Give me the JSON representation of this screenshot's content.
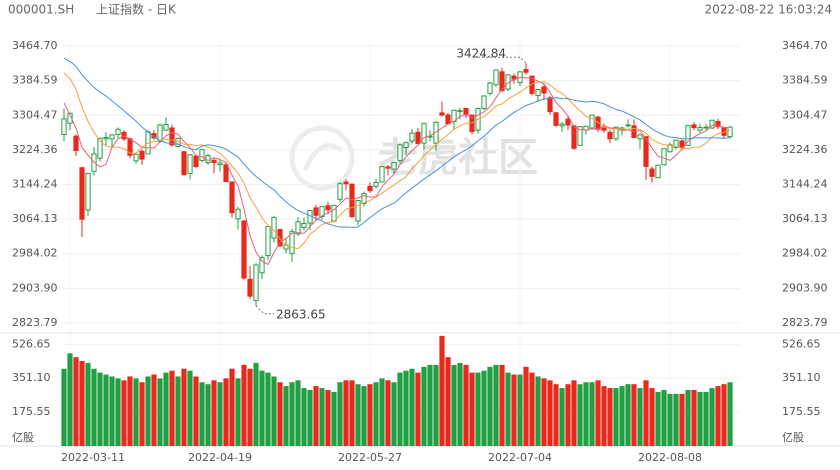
{
  "chart_data": {
    "type": "candlestick",
    "symbol": "000001.SH",
    "title": "上证指数 - 日K",
    "timestamp": "2022-08-22 16:03:24",
    "watermark": "老虎社区",
    "up_color": "#21a043",
    "down_color": "#e8291c",
    "grid": true,
    "categories": [
      null,
      "2022-03-11",
      null,
      null,
      null,
      null,
      null,
      null,
      null,
      null,
      null,
      null,
      null,
      null,
      null,
      null,
      null,
      null,
      null,
      null,
      null,
      null,
      null,
      null,
      null,
      null,
      "2022-04-19",
      null,
      null,
      null,
      null,
      null,
      null,
      null,
      null,
      null,
      null,
      null,
      null,
      null,
      null,
      null,
      null,
      null,
      null,
      null,
      null,
      null,
      null,
      null,
      null,
      "2022-05-27",
      null,
      null,
      null,
      null,
      null,
      null,
      null,
      null,
      null,
      null,
      null,
      null,
      null,
      null,
      null,
      null,
      null,
      null,
      null,
      null,
      null,
      null,
      null,
      null,
      "2022-07-04",
      null,
      null,
      null,
      null,
      null,
      null,
      null,
      null,
      null,
      null,
      null,
      null,
      null,
      null,
      null,
      null,
      null,
      null,
      null,
      null,
      null,
      null,
      null,
      null,
      "2022-08-08",
      null,
      null,
      null,
      null,
      null,
      null,
      null,
      null,
      null,
      null
    ],
    "open": [
      3260,
      3286,
      3256,
      3183,
      3085,
      3175,
      3205,
      3250,
      3250,
      3260,
      3265,
      3250,
      3199,
      3221,
      3215,
      3262,
      3244,
      3270,
      3275,
      3232,
      3220,
      3170,
      3210,
      3200,
      3195,
      3200,
      3190,
      3190,
      3150,
      3065,
      3060,
      2925,
      2876,
      2940,
      2980,
      3020,
      3040,
      2995,
      2985,
      3030,
      3045,
      3055,
      3090,
      3070,
      3095,
      3060,
      3110,
      3150,
      3145,
      3060,
      3100,
      3140,
      3140,
      3150,
      3185,
      3180,
      3200,
      3230,
      3245,
      3265,
      3240,
      3255,
      3240,
      3310,
      3305,
      3290,
      3315,
      3320,
      3305,
      3270,
      3320,
      3355,
      3375,
      3405,
      3365,
      3395,
      3380,
      3410,
      3395,
      3350,
      3370,
      3345,
      3310,
      3280,
      3295,
      3280,
      3235,
      3270,
      3275,
      3300,
      3275,
      3265,
      3250,
      3270,
      3280,
      3280,
      3250,
      3255,
      3180,
      3160,
      3190,
      3220,
      3230,
      3245,
      3235,
      3282,
      3270,
      3275,
      3275,
      3290,
      3275,
      3255
    ],
    "high": [
      3320,
      3310,
      3260,
      3185,
      3171,
      3231,
      3253,
      3265,
      3261,
      3276,
      3270,
      3253,
      3218,
      3226,
      3270,
      3270,
      3285,
      3300,
      3283,
      3253,
      3222,
      3215,
      3213,
      3227,
      3216,
      3205,
      3204,
      3197,
      3152,
      3093,
      3060,
      2955,
      2962,
      2980,
      3048,
      3071,
      3042,
      3021,
      3042,
      3069,
      3068,
      3085,
      3097,
      3094,
      3104,
      3097,
      3150,
      3156,
      3146,
      3109,
      3128,
      3149,
      3158,
      3187,
      3189,
      3196,
      3238,
      3244,
      3273,
      3275,
      3287,
      3270,
      3291,
      3336,
      3310,
      3317,
      3322,
      3321,
      3305,
      3322,
      3351,
      3381,
      3410,
      3414,
      3399,
      3401,
      3406,
      3424.84,
      3396,
      3365,
      3378,
      3350,
      3312,
      3289,
      3302,
      3280,
      3279,
      3280,
      3305,
      3303,
      3285,
      3270,
      3278,
      3278,
      3295,
      3295,
      3262,
      3255,
      3186,
      3190,
      3228,
      3242,
      3248,
      3248,
      3281,
      3288,
      3285,
      3284,
      3293,
      3296,
      3278,
      3280
    ],
    "low": [
      3245,
      3270,
      3210,
      3023,
      3072,
      3165,
      3198,
      3235,
      3230,
      3252,
      3245,
      3205,
      3192,
      3190,
      3214,
      3247,
      3240,
      3268,
      3232,
      3230,
      3165,
      3156,
      3182,
      3196,
      3190,
      3170,
      3174,
      3150,
      3068,
      3040,
      2924,
      2880,
      2863.65,
      2925,
      2970,
      3010,
      3000,
      2985,
      2965,
      3025,
      3038,
      3040,
      3060,
      3063,
      3075,
      3056,
      3103,
      3131,
      3067,
      3050,
      3093,
      3125,
      3134,
      3150,
      3165,
      3170,
      3195,
      3212,
      3240,
      3238,
      3225,
      3244,
      3222,
      3302,
      3283,
      3270,
      3295,
      3298,
      3260,
      3262,
      3316,
      3350,
      3370,
      3360,
      3360,
      3377,
      3372,
      3398,
      3350,
      3335,
      3340,
      3305,
      3278,
      3265,
      3270,
      3225,
      3235,
      3260,
      3270,
      3265,
      3264,
      3240,
      3245,
      3258,
      3276,
      3252,
      3227,
      3155,
      3149,
      3159,
      3188,
      3218,
      3225,
      3223,
      3233,
      3270,
      3264,
      3270,
      3273,
      3272,
      3250,
      3250
    ],
    "close": [
      3296,
      3309,
      3223,
      3064,
      3170,
      3215,
      3251,
      3253,
      3259,
      3272,
      3250,
      3212,
      3214,
      3203,
      3266,
      3252,
      3282,
      3283,
      3236,
      3251,
      3167,
      3213,
      3186,
      3225,
      3211,
      3195,
      3194,
      3151,
      3079,
      3087,
      2928,
      2886,
      2958,
      2975,
      3047,
      3068,
      3002,
      3004,
      3035,
      3058,
      3054,
      3084,
      3073,
      3093,
      3086,
      3096,
      3146,
      3146,
      3070,
      3107,
      3123,
      3130,
      3149,
      3186,
      3182,
      3195,
      3236,
      3241,
      3263,
      3239,
      3285,
      3256,
      3288,
      3305,
      3285,
      3316,
      3315,
      3307,
      3267,
      3320,
      3349,
      3379,
      3409,
      3361,
      3398,
      3388,
      3405,
      3404,
      3355,
      3364,
      3356,
      3313,
      3281,
      3284,
      3282,
      3228,
      3278,
      3279,
      3305,
      3272,
      3270,
      3250,
      3277,
      3275,
      3282,
      3253,
      3259,
      3186,
      3163,
      3189,
      3227,
      3236,
      3247,
      3230,
      3281,
      3276,
      3276,
      3277,
      3293,
      3278,
      3258,
      3277
    ],
    "ma": [
      {
        "color": "#e8607a",
        "values": [
          3333,
          3305,
          3275,
          3230,
          3212,
          3196,
          3185,
          3191,
          3230,
          3250,
          3257,
          3249,
          3241,
          3230,
          3229,
          3229,
          3243,
          3257,
          3264,
          3261,
          3244,
          3230,
          3211,
          3208,
          3200,
          3206,
          3202,
          3195,
          3166,
          3141,
          3088,
          3026,
          2988,
          2967,
          2959,
          2987,
          3010,
          3019,
          3031,
          3033,
          3031,
          3047,
          3061,
          3072,
          3078,
          3086,
          3099,
          3113,
          3109,
          3113,
          3118,
          3115,
          3116,
          3139,
          3154,
          3168,
          3190,
          3208,
          3223,
          3235,
          3253,
          3257,
          3266,
          3275,
          3284,
          3290,
          3302,
          3306,
          3298,
          3305,
          3312,
          3324,
          3345,
          3364,
          3379,
          3387,
          3392,
          3391,
          3390,
          3383,
          3377,
          3358,
          3334,
          3320,
          3303,
          3278,
          3271,
          3270,
          3274,
          3272,
          3281,
          3275,
          3275,
          3269,
          3271,
          3267,
          3269,
          3251,
          3229,
          3210,
          3205,
          3200,
          3212,
          3226,
          3244,
          3254,
          3262,
          3268,
          3281,
          3280,
          3276,
          3277
        ]
      },
      {
        "color": "#f2a23a",
        "values": [
          3403,
          3389,
          3365,
          3323,
          3291,
          3265,
          3245,
          3233,
          3230,
          3231,
          3227,
          3217,
          3216,
          3230,
          3240,
          3243,
          3246,
          3249,
          3247,
          3245,
          3237,
          3237,
          3234,
          3236,
          3231,
          3225,
          3216,
          3203,
          3187,
          3171,
          3147,
          3114,
          3092,
          3067,
          3050,
          3038,
          3018,
          3004,
          2999,
          2996,
          3009,
          3029,
          3040,
          3052,
          3056,
          3059,
          3073,
          3087,
          3091,
          3096,
          3102,
          3107,
          3115,
          3124,
          3134,
          3143,
          3153,
          3162,
          3181,
          3195,
          3211,
          3224,
          3237,
          3249,
          3260,
          3272,
          3280,
          3286,
          3287,
          3295,
          3301,
          3313,
          3326,
          3331,
          3342,
          3350,
          3358,
          3368,
          3377,
          3381,
          3382,
          3375,
          3363,
          3355,
          3343,
          3328,
          3315,
          3302,
          3297,
          3288,
          3280,
          3273,
          3273,
          3272,
          3272,
          3274,
          3272,
          3263,
          3249,
          3241,
          3236,
          3235,
          3232,
          3228,
          3227,
          3230,
          3231,
          3240,
          3254,
          3262,
          3265,
          3270
        ]
      },
      {
        "color": "#4a90d9",
        "values": [
          3437,
          3429,
          3418,
          3398,
          3383,
          3369,
          3358,
          3349,
          3338,
          3326,
          3315,
          3303,
          3291,
          3277,
          3266,
          3254,
          3246,
          3241,
          3239,
          3238,
          3232,
          3227,
          3225,
          3233,
          3236,
          3234,
          3231,
          3226,
          3217,
          3208,
          3192,
          3176,
          3163,
          3152,
          3141,
          3132,
          3117,
          3104,
          3093,
          3084,
          3078,
          3072,
          3066,
          3060,
          3053,
          3049,
          3046,
          3046,
          3045,
          3046,
          3056,
          3068,
          3078,
          3088,
          3095,
          3101,
          3113,
          3125,
          3136,
          3146,
          3157,
          3166,
          3176,
          3187,
          3197,
          3208,
          3217,
          3224,
          3234,
          3245,
          3256,
          3269,
          3282,
          3290,
          3301,
          3311,
          3319,
          3327,
          3332,
          3338,
          3342,
          3344,
          3345,
          3343,
          3343,
          3339,
          3337,
          3335,
          3337,
          3335,
          3331,
          3324,
          3318,
          3314,
          3308,
          3301,
          3294,
          3283,
          3273,
          3265,
          3258,
          3254,
          3253,
          3250,
          3250,
          3252,
          3252,
          3252,
          3252,
          3252,
          3251,
          3253
        ]
      }
    ],
    "ylim": [
      2823.79,
      3464.7
    ],
    "yticks": [
      {
        "value": 3464.7,
        "label": "3464.70"
      },
      3384.59,
      3304.47,
      3224.36,
      3144.24,
      3064.13,
      2984.02,
      {
        "value": 2903.9,
        "label": "2903.90"
      },
      2823.79
    ],
    "volume": {
      "unit_label": "亿股",
      "ylim": [
        0,
        585
      ],
      "yticks": [
        526.65,
        {
          "value": 351.1,
          "label": "351.10"
        },
        175.55
      ],
      "values": [
        400,
        480,
        460,
        440,
        430,
        400,
        380,
        370,
        360,
        350,
        340,
        360,
        350,
        330,
        360,
        370,
        350,
        380,
        390,
        360,
        400,
        390,
        360,
        330,
        320,
        340,
        330,
        350,
        400,
        350,
        420,
        400,
        430,
        390,
        380,
        360,
        330,
        310,
        330,
        340,
        300,
        290,
        310,
        300,
        290,
        280,
        330,
        340,
        340,
        320,
        310,
        320,
        330,
        350,
        340,
        330,
        380,
        390,
        400,
        380,
        410,
        420,
        420,
        570,
        460,
        420,
        430,
        420,
        380,
        380,
        390,
        410,
        420,
        420,
        380,
        370,
        370,
        410,
        380,
        360,
        350,
        340,
        320,
        300,
        320,
        340,
        320,
        330,
        330,
        340,
        310,
        300,
        300,
        310,
        320,
        320,
        300,
        340,
        300,
        280,
        290,
        270,
        270,
        270,
        290,
        290,
        280,
        280,
        300,
        310,
        320,
        330
      ]
    }
  }
}
